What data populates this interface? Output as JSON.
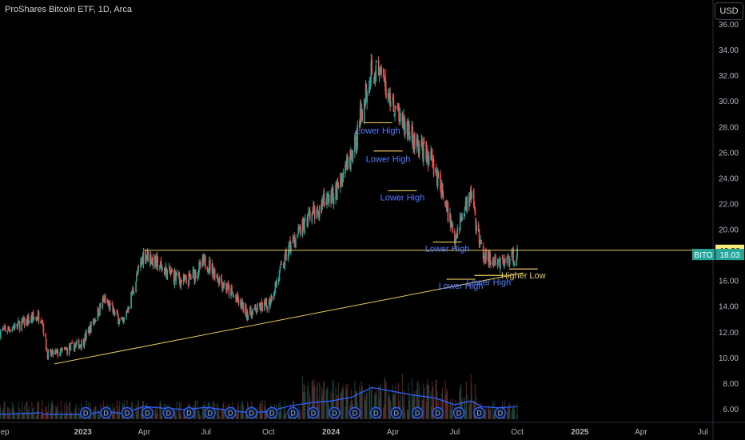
{
  "header": {
    "title": "ProShares Bitcoin ETF, 1D, Arca",
    "currency_button": "USD"
  },
  "colors": {
    "up": "#26a69a",
    "down": "#ef5350",
    "annotation": "#e8c85a",
    "label": "#4f7cff",
    "volume_line": "#2962ff"
  },
  "chart_data": {
    "type": "candlestick",
    "y_ticks": [
      "6.00",
      "8.00",
      "10.00",
      "12.00",
      "14.00",
      "16.00",
      "18.00",
      "20.00",
      "22.00",
      "24.00",
      "26.00",
      "28.00",
      "30.00",
      "32.00",
      "34.00",
      "36.00"
    ],
    "ylim": [
      5,
      36.5
    ],
    "x_ticks": [
      "ep",
      "2023",
      "Apr",
      "Jul",
      "Oct",
      "2024",
      "Apr",
      "Jul",
      "Oct",
      "2025",
      "Apr",
      "Jul"
    ],
    "price_path": [
      {
        "date": "2022-09-01",
        "close": 12.0
      },
      {
        "date": "2022-10-01",
        "close": 12.6
      },
      {
        "date": "2022-11-01",
        "close": 13.3
      },
      {
        "date": "2022-11-10",
        "close": 10.2
      },
      {
        "date": "2022-12-01",
        "close": 10.4
      },
      {
        "date": "2023-01-01",
        "close": 11.2
      },
      {
        "date": "2023-02-01",
        "close": 14.5
      },
      {
        "date": "2023-03-01",
        "close": 12.6
      },
      {
        "date": "2023-04-01",
        "close": 18.2
      },
      {
        "date": "2023-05-01",
        "close": 16.8
      },
      {
        "date": "2023-06-01",
        "close": 15.8
      },
      {
        "date": "2023-07-01",
        "close": 17.5
      },
      {
        "date": "2023-08-01",
        "close": 15.4
      },
      {
        "date": "2023-09-01",
        "close": 13.4
      },
      {
        "date": "2023-10-01",
        "close": 14.2
      },
      {
        "date": "2023-11-01",
        "close": 18.6
      },
      {
        "date": "2023-12-01",
        "close": 21.0
      },
      {
        "date": "2024-01-01",
        "close": 22.5
      },
      {
        "date": "2024-02-01",
        "close": 25.5
      },
      {
        "date": "2024-03-01",
        "close": 33.0
      },
      {
        "date": "2024-04-01",
        "close": 30.0
      },
      {
        "date": "2024-05-01",
        "close": 27.0
      },
      {
        "date": "2024-06-01",
        "close": 25.0
      },
      {
        "date": "2024-07-01",
        "close": 19.5
      },
      {
        "date": "2024-07-25",
        "close": 22.5
      },
      {
        "date": "2024-08-10",
        "close": 18.0
      },
      {
        "date": "2024-09-01",
        "close": 17.2
      },
      {
        "date": "2024-10-01",
        "close": 18.03
      }
    ],
    "horizontal_levels": [
      {
        "price": 18.36,
        "label": "18.36"
      }
    ],
    "trendline": [
      {
        "date": "2022-11-20",
        "price": 9.5
      },
      {
        "date": "2024-10-10",
        "price": 16.6
      }
    ],
    "annotations": [
      {
        "text": "Lower High",
        "date": "2024-03-10",
        "price": 28.2,
        "line_price": 28.3
      },
      {
        "text": "Lower High",
        "date": "2024-03-25",
        "price": 26.0,
        "line_price": 26.1
      },
      {
        "text": "Lower High",
        "date": "2024-04-15",
        "price": 23.0,
        "line_price": 23.0
      },
      {
        "text": "Lower High",
        "date": "2024-06-20",
        "price": 19.0,
        "line_price": 19.0
      },
      {
        "text": "Lower High",
        "date": "2024-07-10",
        "price": 16.1,
        "line_price": 16.1
      },
      {
        "text": "Lower High",
        "date": "2024-08-20",
        "price": 16.4,
        "line_price": 16.4
      },
      {
        "text": "Higher Low",
        "date": "2024-10-10",
        "price": 16.9,
        "line_price": 16.9
      }
    ],
    "price_labels": [
      {
        "text": "18.36",
        "color": "#f5e97a",
        "text_color": "#000",
        "price": 18.36
      },
      {
        "ticker": "BITO",
        "text": "18.03",
        "color": "#26a69a",
        "text_color": "#fff",
        "price": 18.03
      }
    ],
    "dividend_markers": {
      "symbol": "D",
      "count": 21
    }
  }
}
